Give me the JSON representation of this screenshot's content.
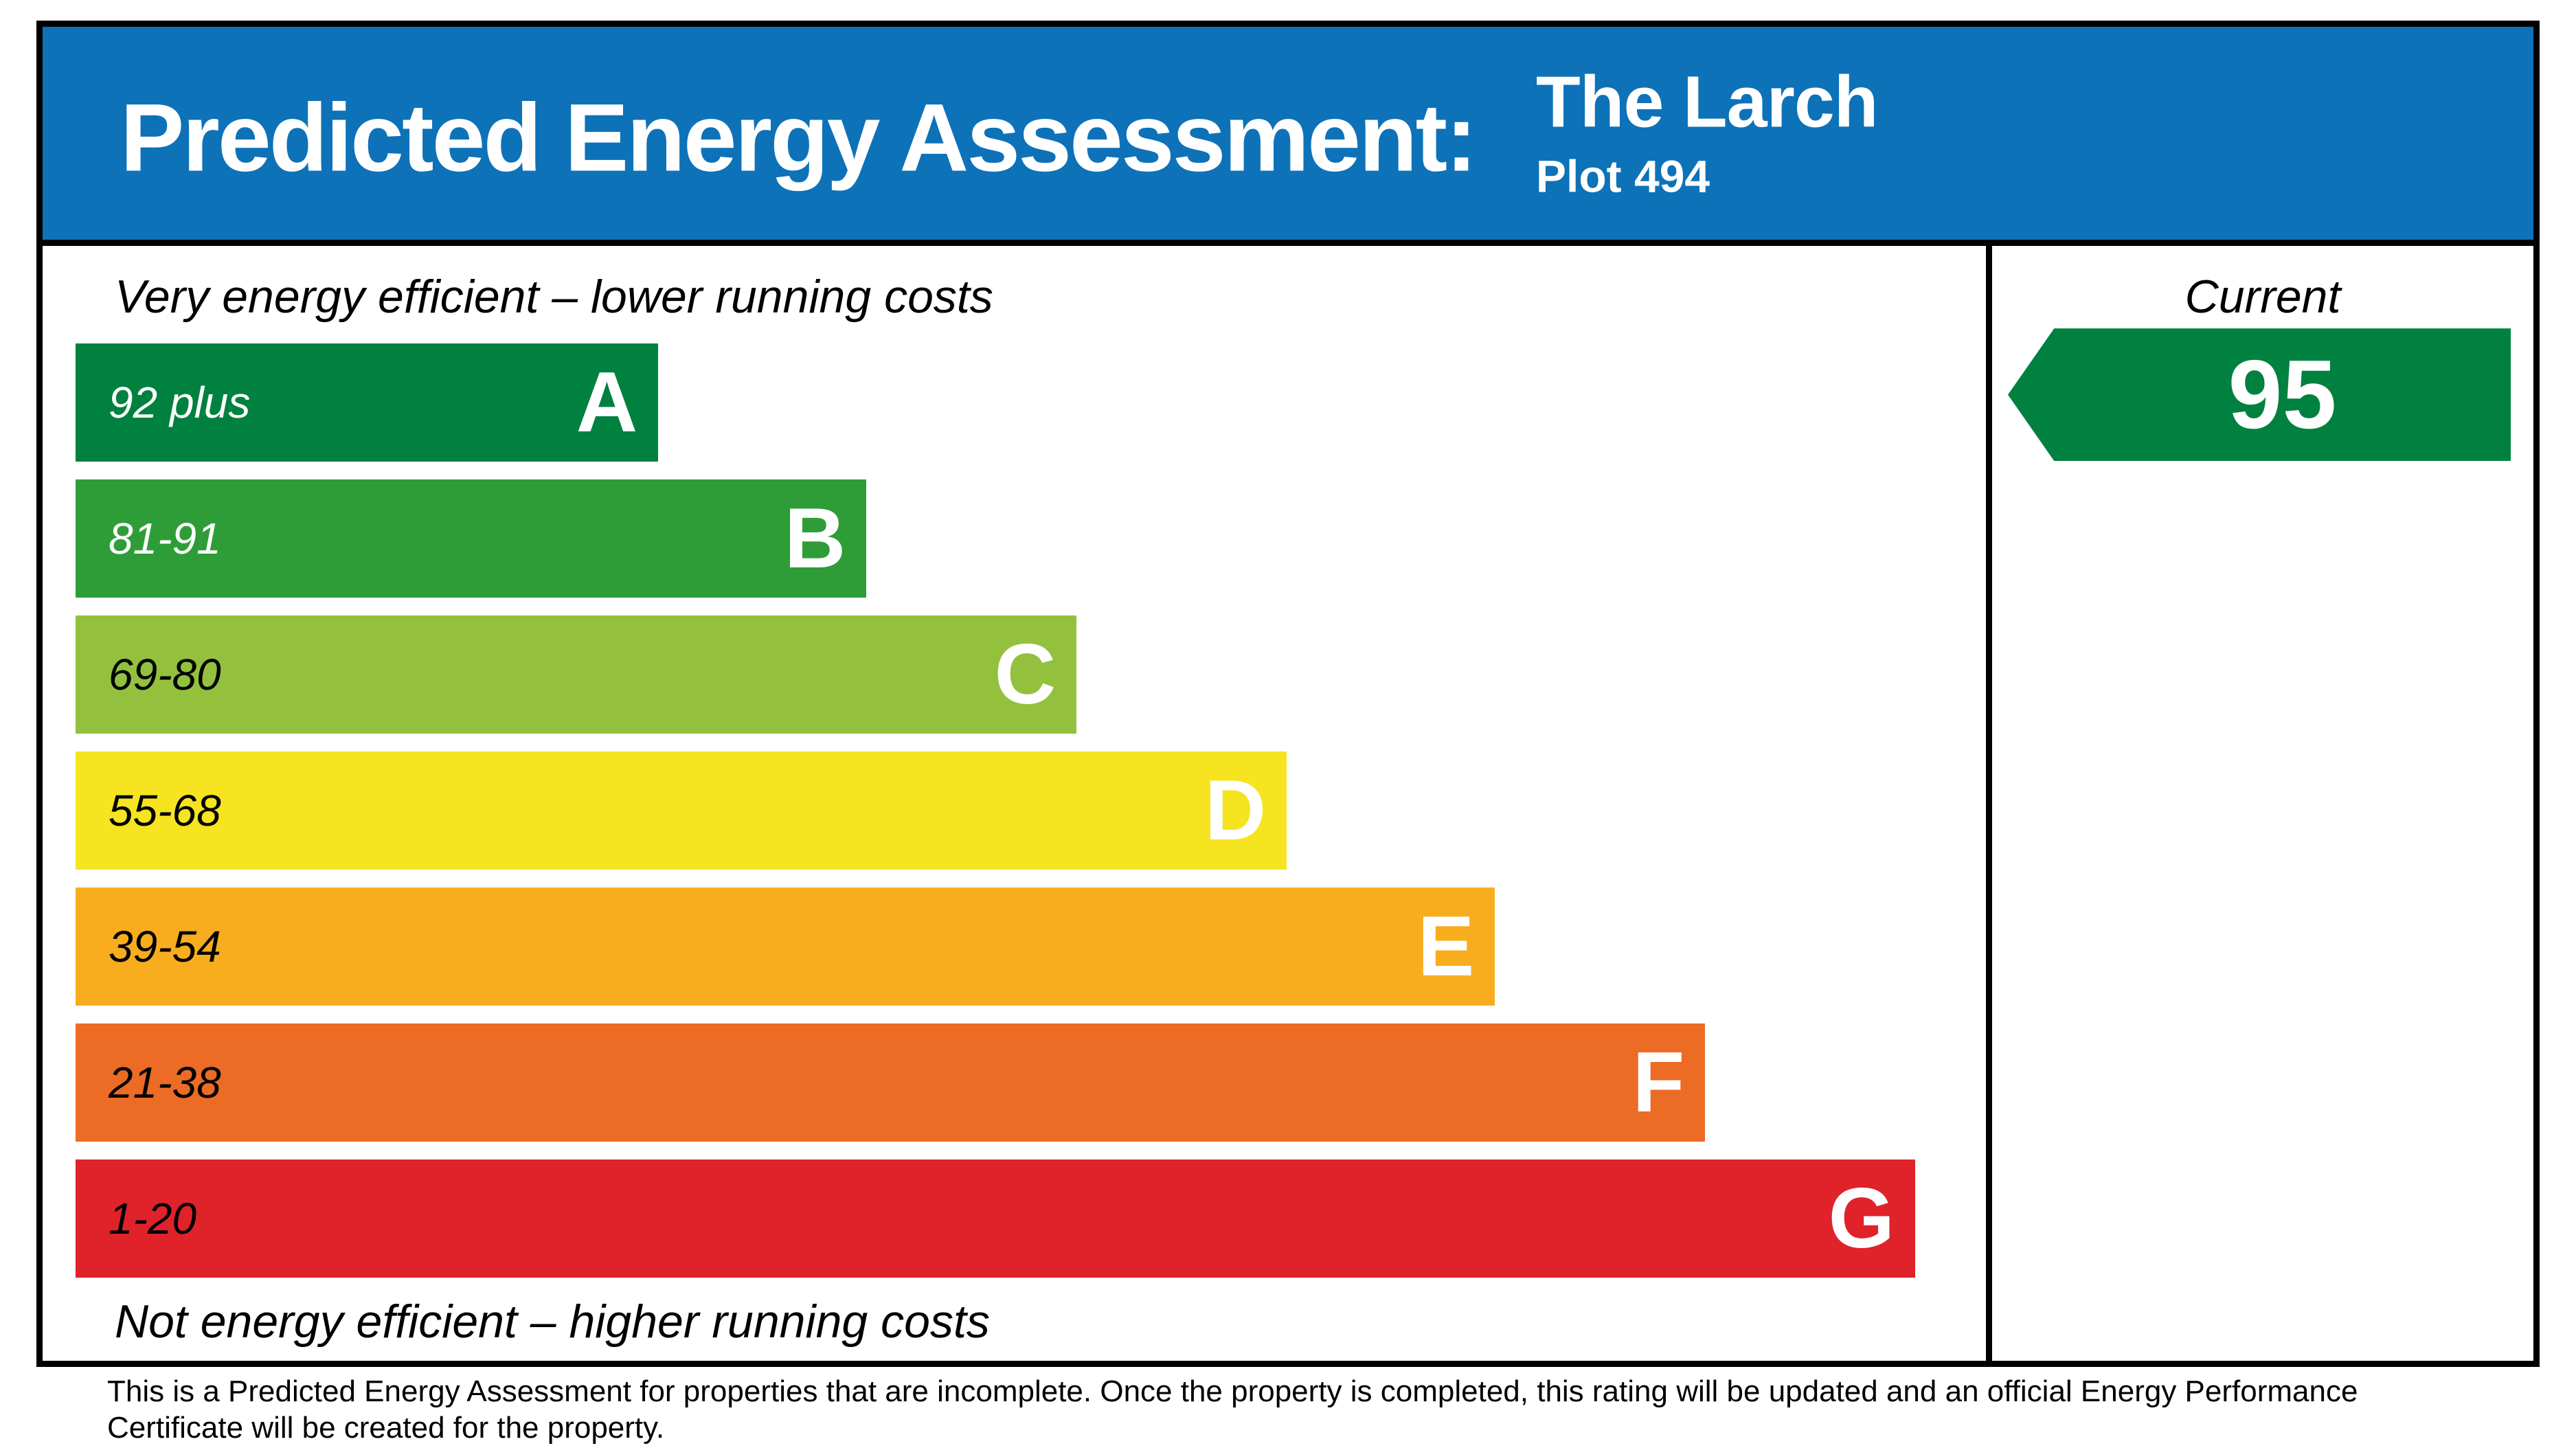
{
  "header": {
    "title": "Predicted Energy Assessment:",
    "property_name": "The Larch",
    "plot": "Plot 494",
    "background": "#0d72b8",
    "text_color": "#ffffff"
  },
  "chart_data": {
    "type": "bar",
    "title": "Predicted Energy Assessment",
    "top_caption": "Very energy efficient – lower running costs",
    "bottom_caption": "Not energy efficient – higher running costs",
    "column_header": "Current",
    "current_rating": 95,
    "current_band": "A",
    "arrow_color": "#00813f",
    "layout_note": "Horizontal EPC bands, bar length increases from best band A to worst band G; current rating arrow points left in the Current column, aligned with band A",
    "bands": [
      {
        "grade": "A",
        "range": "92 plus",
        "color": "#00813f",
        "range_text_color": "#ffffff",
        "width": "30.5%"
      },
      {
        "grade": "B",
        "range": "81-91",
        "color": "#2e9d38",
        "range_text_color": "#ffffff",
        "width": "41.4%"
      },
      {
        "grade": "C",
        "range": "69-80",
        "color": "#94c13d",
        "range_text_color": "#000000",
        "width": "52.4%"
      },
      {
        "grade": "D",
        "range": "55-68",
        "color": "#f5e41f",
        "range_text_color": "#000000",
        "width": "63.4%"
      },
      {
        "grade": "E",
        "range": "39-54",
        "color": "#f8ad1e",
        "range_text_color": "#000000",
        "width": "74.3%"
      },
      {
        "grade": "F",
        "range": "21-38",
        "color": "#ec6b25",
        "range_text_color": "#000000",
        "width": "85.3%"
      },
      {
        "grade": "G",
        "range": "1-20",
        "color": "#e0222a",
        "range_text_color": "#000000",
        "width": "96.3%"
      }
    ]
  },
  "footnote": {
    "line1": "This is a Predicted Energy Assessment for properties that are incomplete. Once the property is completed, this rating will be updated and an official Energy Performance",
    "line2": "Certificate will be created for the property."
  }
}
